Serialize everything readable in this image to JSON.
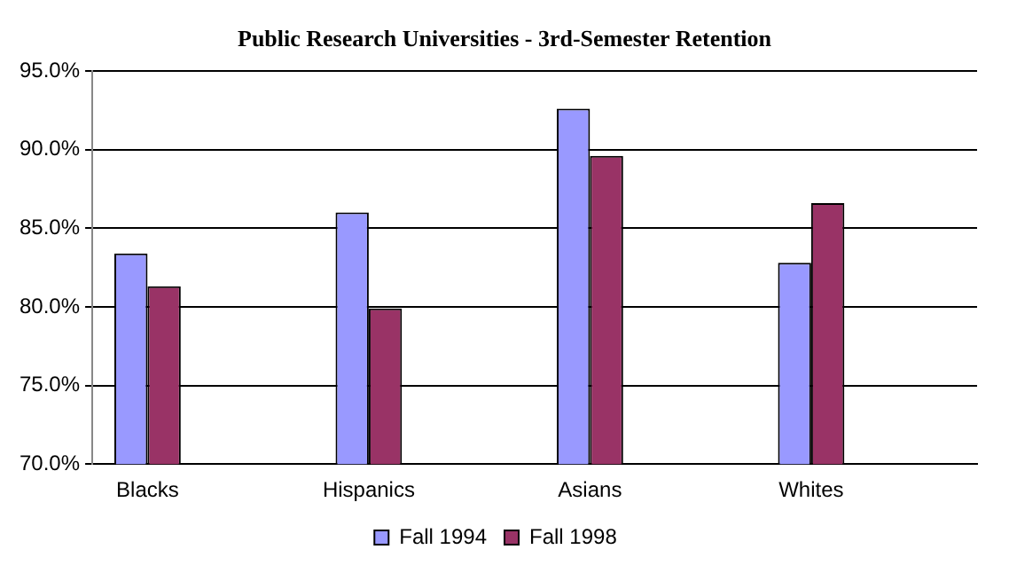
{
  "chart_data": {
    "type": "bar",
    "title": "Public Research Universities - 3rd-Semester Retention",
    "categories": [
      "Blacks",
      null,
      "Hispanics",
      null,
      "Asians",
      null,
      "Whites",
      null
    ],
    "series": [
      {
        "name": "Fall 1994",
        "color": "#9999ff",
        "values": [
          83.4,
          null,
          86.0,
          null,
          92.6,
          null,
          82.8,
          null
        ]
      },
      {
        "name": "Fall 1998",
        "color": "#993366",
        "values": [
          81.3,
          null,
          79.9,
          null,
          89.6,
          null,
          86.6,
          null
        ]
      }
    ],
    "ylim": [
      70,
      95
    ],
    "yticks": [
      {
        "value": 70,
        "label": "70.0%"
      },
      {
        "value": 75,
        "label": "75.0%"
      },
      {
        "value": 80,
        "label": "80.0%"
      },
      {
        "value": 85,
        "label": "85.0%"
      },
      {
        "value": 90,
        "label": "90.0%"
      },
      {
        "value": 95,
        "label": "95.0%"
      }
    ],
    "grid": "y",
    "legend": "bottom"
  }
}
